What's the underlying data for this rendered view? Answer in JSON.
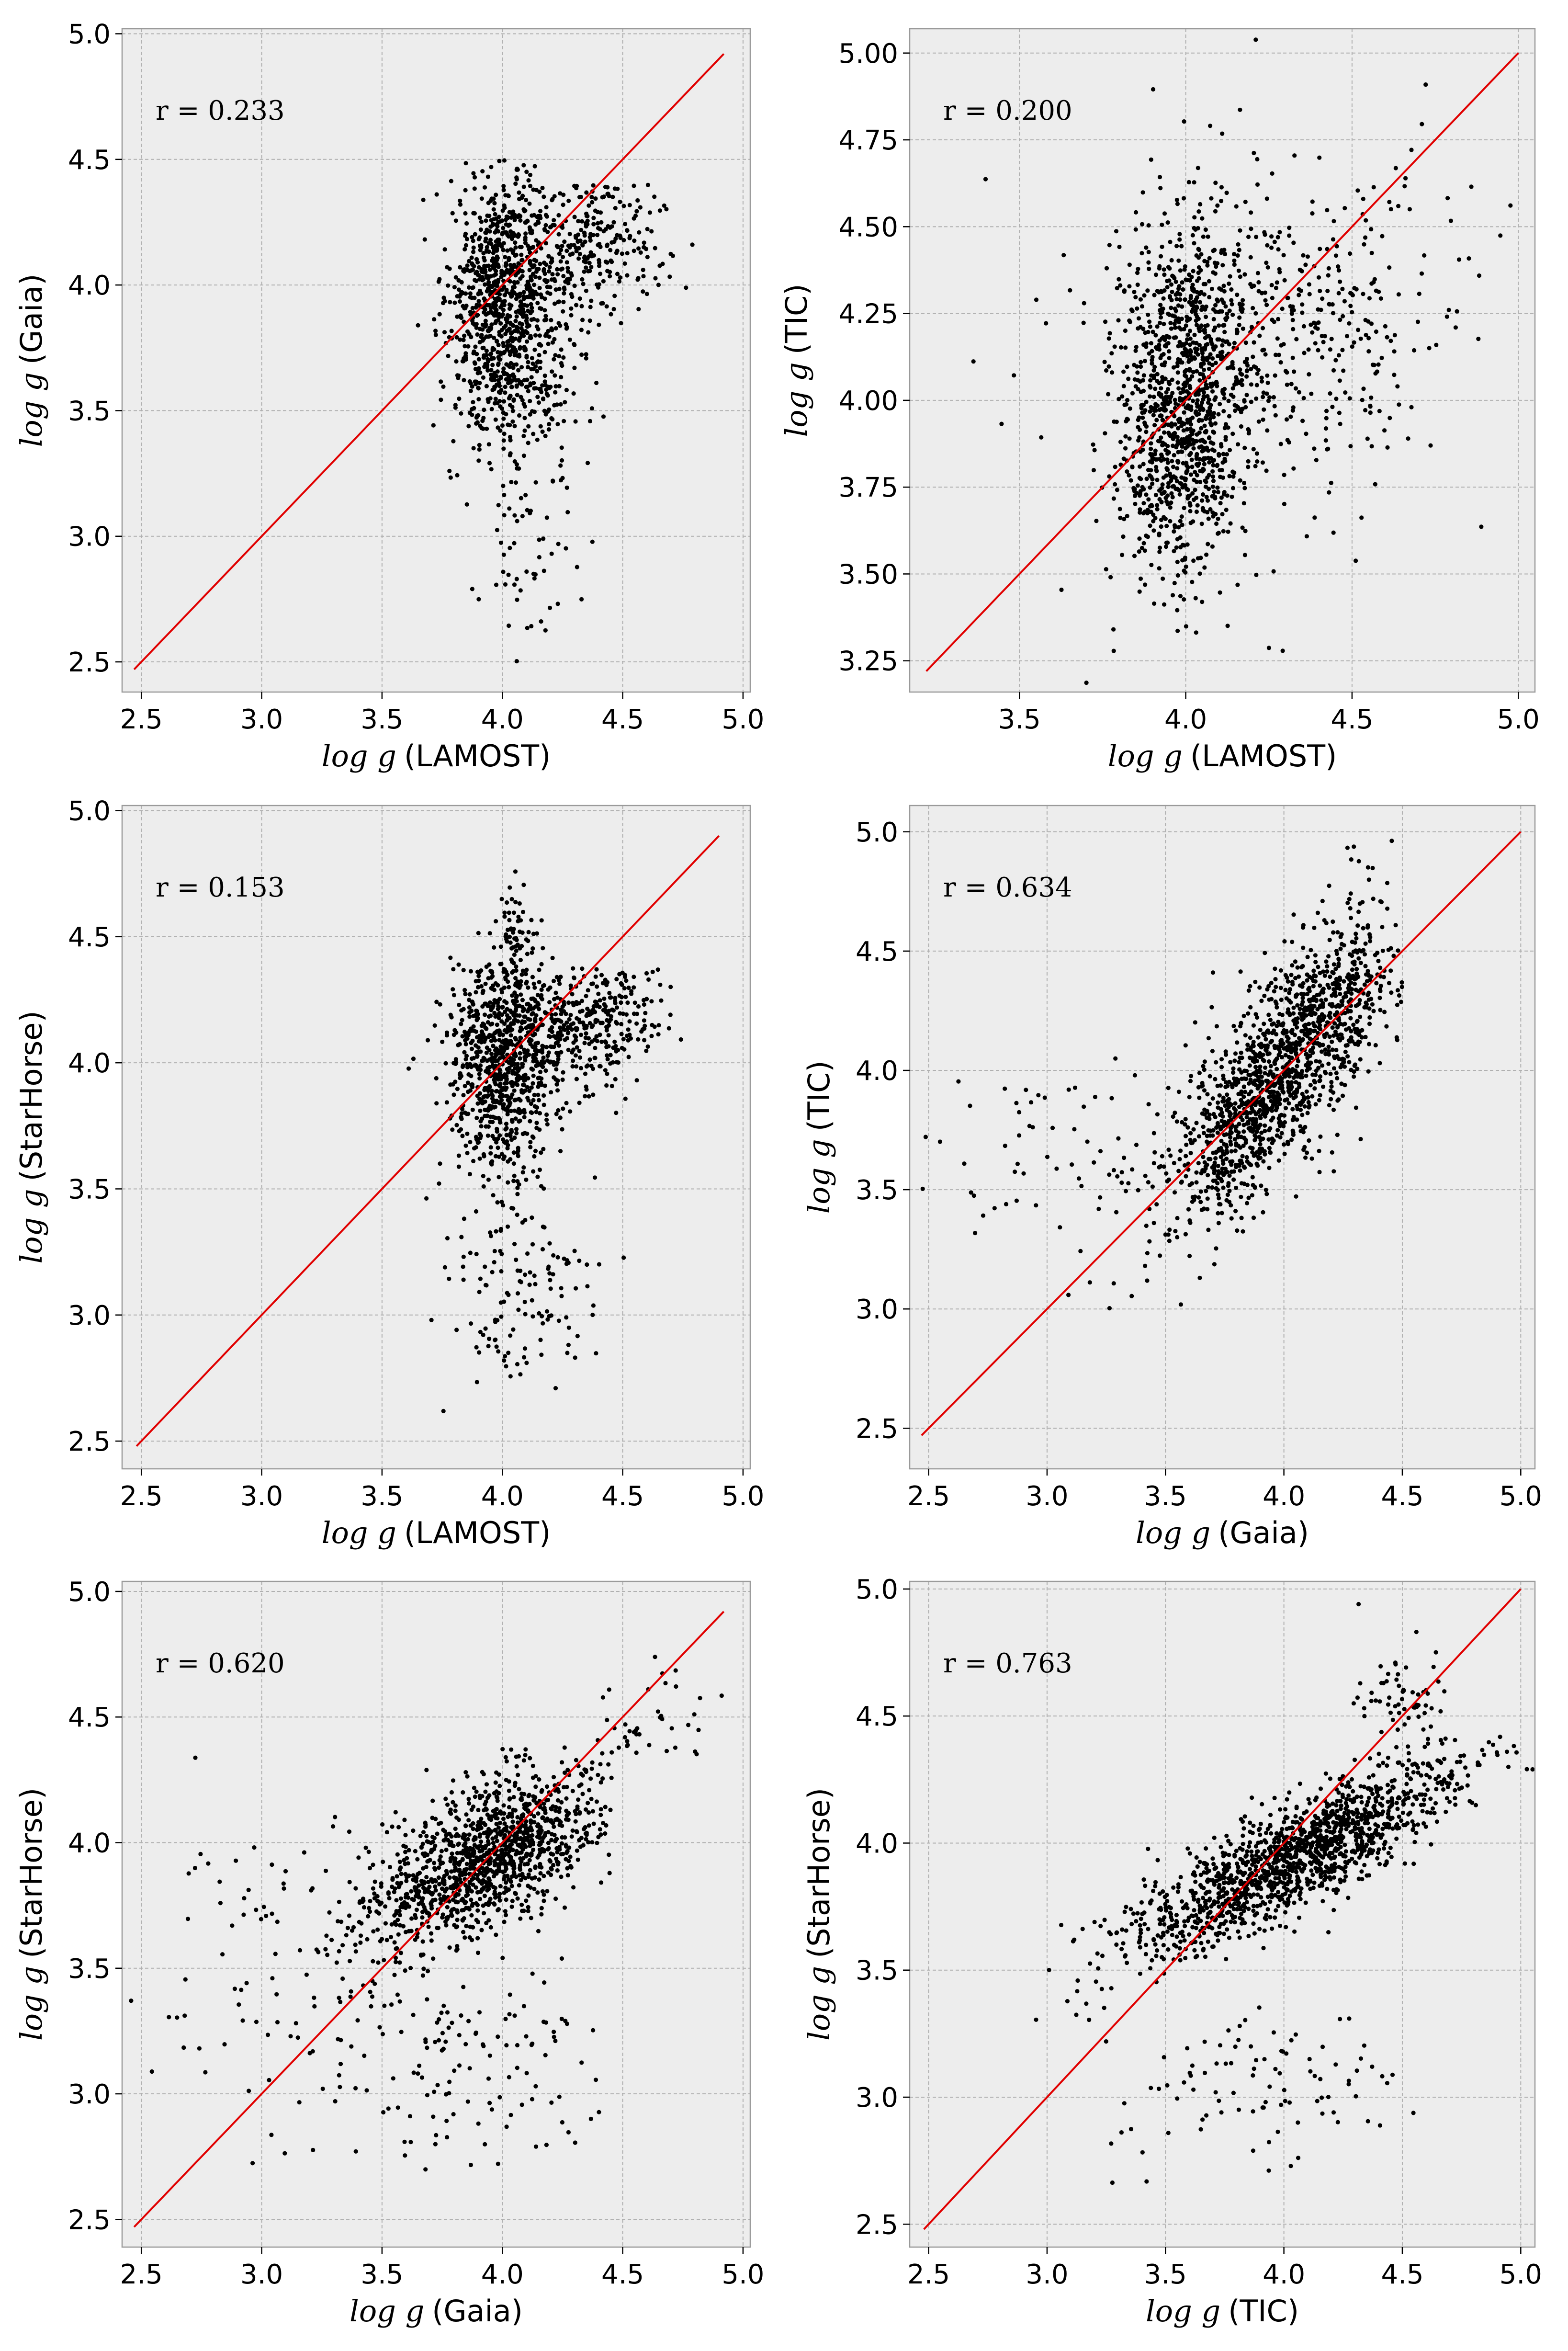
{
  "chart_data": [
    {
      "type": "scatter",
      "position": "top-left",
      "xlabel": {
        "math": "log g",
        "text": "(LAMOST)"
      },
      "ylabel": {
        "math": "log g",
        "text": "(Gaia)"
      },
      "annotation": "r = 0.233",
      "xlim": [
        2.42,
        5.03
      ],
      "ylim": [
        2.38,
        5.02
      ],
      "xticks": [
        "2.5",
        "3.0",
        "3.5",
        "4.0",
        "4.5",
        "5.0"
      ],
      "yticks": [
        "2.5",
        "3.0",
        "3.5",
        "4.0",
        "4.5",
        "5.0"
      ],
      "identity_line": [
        2.47,
        4.92
      ],
      "identity_line_color": "#e00000",
      "point_color": "#000000",
      "point_count": 1400,
      "grid": true,
      "background": "#ededed",
      "clusters": [
        {
          "cx": 4.0,
          "cy": 3.95,
          "sx": 0.11,
          "sy": 0.25,
          "rho": 0.0,
          "weight": 0.62,
          "ymax": 4.5
        },
        {
          "cx": 4.35,
          "cy": 4.15,
          "sx": 0.17,
          "sy": 0.16,
          "rho": 0.2,
          "weight": 0.23,
          "ymax": 4.4
        },
        {
          "cx": 4.1,
          "cy": 3.6,
          "sx": 0.14,
          "sy": 0.12,
          "rho": 0.0,
          "weight": 0.1
        },
        {
          "cx": 4.1,
          "cy": 3.0,
          "sx": 0.15,
          "sy": 0.25,
          "rho": 0.0,
          "weight": 0.05
        }
      ]
    },
    {
      "type": "scatter",
      "position": "top-right",
      "xlabel": {
        "math": "log g",
        "text": "(LAMOST)"
      },
      "ylabel": {
        "math": "log g",
        "text": "(TIC)"
      },
      "annotation": "r = 0.200",
      "xlim": [
        3.17,
        5.05
      ],
      "ylim": [
        3.16,
        5.07
      ],
      "xticks": [
        "3.5",
        "4.0",
        "4.5",
        "5.0"
      ],
      "yticks": [
        "3.25",
        "3.50",
        "3.75",
        "4.00",
        "4.25",
        "4.50",
        "4.75",
        "5.00"
      ],
      "identity_line": [
        3.22,
        5.0
      ],
      "identity_line_color": "#e00000",
      "point_color": "#000000",
      "point_count": 1600,
      "grid": true,
      "background": "#ededed",
      "clusters": [
        {
          "cx": 4.0,
          "cy": 4.0,
          "sx": 0.1,
          "sy": 0.26,
          "rho": 0.1,
          "weight": 0.7
        },
        {
          "cx": 4.35,
          "cy": 4.2,
          "sx": 0.2,
          "sy": 0.2,
          "rho": 0.2,
          "weight": 0.2
        },
        {
          "cx": 4.1,
          "cy": 4.1,
          "sx": 0.3,
          "sy": 0.35,
          "rho": 0.0,
          "weight": 0.1
        }
      ]
    },
    {
      "type": "scatter",
      "position": "middle-left",
      "xlabel": {
        "math": "log g",
        "text": "(LAMOST)"
      },
      "ylabel": {
        "math": "log g",
        "text": "(StarHorse)"
      },
      "annotation": "r = 0.153",
      "xlim": [
        2.42,
        5.03
      ],
      "ylim": [
        2.39,
        5.02
      ],
      "xticks": [
        "2.5",
        "3.0",
        "3.5",
        "4.0",
        "4.5",
        "5.0"
      ],
      "yticks": [
        "2.5",
        "3.0",
        "3.5",
        "4.0",
        "4.5",
        "5.0"
      ],
      "identity_line": [
        2.48,
        4.9
      ],
      "identity_line_color": "#e00000",
      "point_color": "#000000",
      "point_count": 1400,
      "grid": true,
      "background": "#ededed",
      "clusters": [
        {
          "cx": 4.0,
          "cy": 4.0,
          "sx": 0.12,
          "sy": 0.22,
          "rho": 0.0,
          "weight": 0.6,
          "ymax": 4.42
        },
        {
          "cx": 4.35,
          "cy": 4.15,
          "sx": 0.17,
          "sy": 0.12,
          "rho": 0.2,
          "weight": 0.25,
          "ymax": 4.38
        },
        {
          "cx": 4.1,
          "cy": 3.1,
          "sx": 0.15,
          "sy": 0.2,
          "rho": 0.0,
          "weight": 0.1
        },
        {
          "cx": 4.05,
          "cy": 4.5,
          "sx": 0.05,
          "sy": 0.1,
          "rho": 0.0,
          "weight": 0.05
        }
      ]
    },
    {
      "type": "scatter",
      "position": "middle-right",
      "xlabel": {
        "math": "log g",
        "text": "(Gaia)"
      },
      "ylabel": {
        "math": "log g",
        "text": "(TIC)"
      },
      "annotation": "r = 0.634",
      "xlim": [
        2.42,
        5.06
      ],
      "ylim": [
        2.33,
        5.11
      ],
      "xticks": [
        "2.5",
        "3.0",
        "3.5",
        "4.0",
        "4.5",
        "5.0"
      ],
      "yticks": [
        "2.5",
        "3.0",
        "3.5",
        "4.0",
        "4.5",
        "5.0"
      ],
      "identity_line": [
        2.47,
        5.0
      ],
      "identity_line_color": "#e00000",
      "point_color": "#000000",
      "point_count": 1500,
      "grid": true,
      "background": "#ededed",
      "clusters": [
        {
          "cx": 3.95,
          "cy": 3.95,
          "sx": 0.22,
          "sy": 0.3,
          "rho": 0.75,
          "weight": 0.82,
          "xmax": 4.5
        },
        {
          "cx": 4.25,
          "cy": 4.3,
          "sx": 0.12,
          "sy": 0.25,
          "rho": 0.5,
          "weight": 0.12,
          "xmax": 4.5
        },
        {
          "cx": 3.2,
          "cy": 3.6,
          "sx": 0.35,
          "sy": 0.25,
          "rho": 0.0,
          "weight": 0.06
        }
      ]
    },
    {
      "type": "scatter",
      "position": "bottom-left",
      "xlabel": {
        "math": "log g",
        "text": "(Gaia)"
      },
      "ylabel": {
        "math": "log g",
        "text": "(StarHorse)"
      },
      "annotation": "r = 0.620",
      "xlim": [
        2.42,
        5.03
      ],
      "ylim": [
        2.39,
        5.04
      ],
      "xticks": [
        "2.5",
        "3.0",
        "3.5",
        "4.0",
        "4.5",
        "5.0"
      ],
      "yticks": [
        "2.5",
        "3.0",
        "3.5",
        "4.0",
        "4.5",
        "5.0"
      ],
      "identity_line": [
        2.47,
        4.92
      ],
      "identity_line_color": "#e00000",
      "point_color": "#000000",
      "point_count": 1500,
      "grid": true,
      "background": "#ededed",
      "clusters": [
        {
          "cx": 3.95,
          "cy": 3.95,
          "sx": 0.25,
          "sy": 0.18,
          "rho": 0.6,
          "weight": 0.82,
          "ymax": 4.4,
          "xmax": 4.45
        },
        {
          "cx": 3.8,
          "cy": 3.1,
          "sx": 0.35,
          "sy": 0.22,
          "rho": 0.0,
          "weight": 0.09
        },
        {
          "cx": 3.1,
          "cy": 3.6,
          "sx": 0.35,
          "sy": 0.3,
          "rho": 0.0,
          "weight": 0.06
        },
        {
          "cx": 4.6,
          "cy": 4.45,
          "sx": 0.15,
          "sy": 0.12,
          "rho": 0.3,
          "weight": 0.03
        }
      ]
    },
    {
      "type": "scatter",
      "position": "bottom-right",
      "xlabel": {
        "math": "log g",
        "text": "(TIC)"
      },
      "ylabel": {
        "math": "log g",
        "text": "(StarHorse)"
      },
      "annotation": "r = 0.763",
      "xlim": [
        2.42,
        5.06
      ],
      "ylim": [
        2.41,
        5.03
      ],
      "xticks": [
        "2.5",
        "3.0",
        "3.5",
        "4.0",
        "4.5",
        "5.0"
      ],
      "yticks": [
        "2.5",
        "3.0",
        "3.5",
        "4.0",
        "4.5",
        "5.0"
      ],
      "identity_line": [
        2.48,
        5.0
      ],
      "identity_line_color": "#e00000",
      "point_color": "#000000",
      "point_count": 1600,
      "grid": true,
      "background": "#ededed",
      "clusters": [
        {
          "cx": 4.05,
          "cy": 3.95,
          "sx": 0.35,
          "sy": 0.2,
          "rho": 0.85,
          "weight": 0.9,
          "ymax": 4.42
        },
        {
          "cx": 3.9,
          "cy": 3.05,
          "sx": 0.3,
          "sy": 0.15,
          "rho": 0.0,
          "weight": 0.06
        },
        {
          "cx": 4.5,
          "cy": 4.55,
          "sx": 0.1,
          "sy": 0.1,
          "rho": 0.0,
          "weight": 0.04
        }
      ]
    }
  ]
}
